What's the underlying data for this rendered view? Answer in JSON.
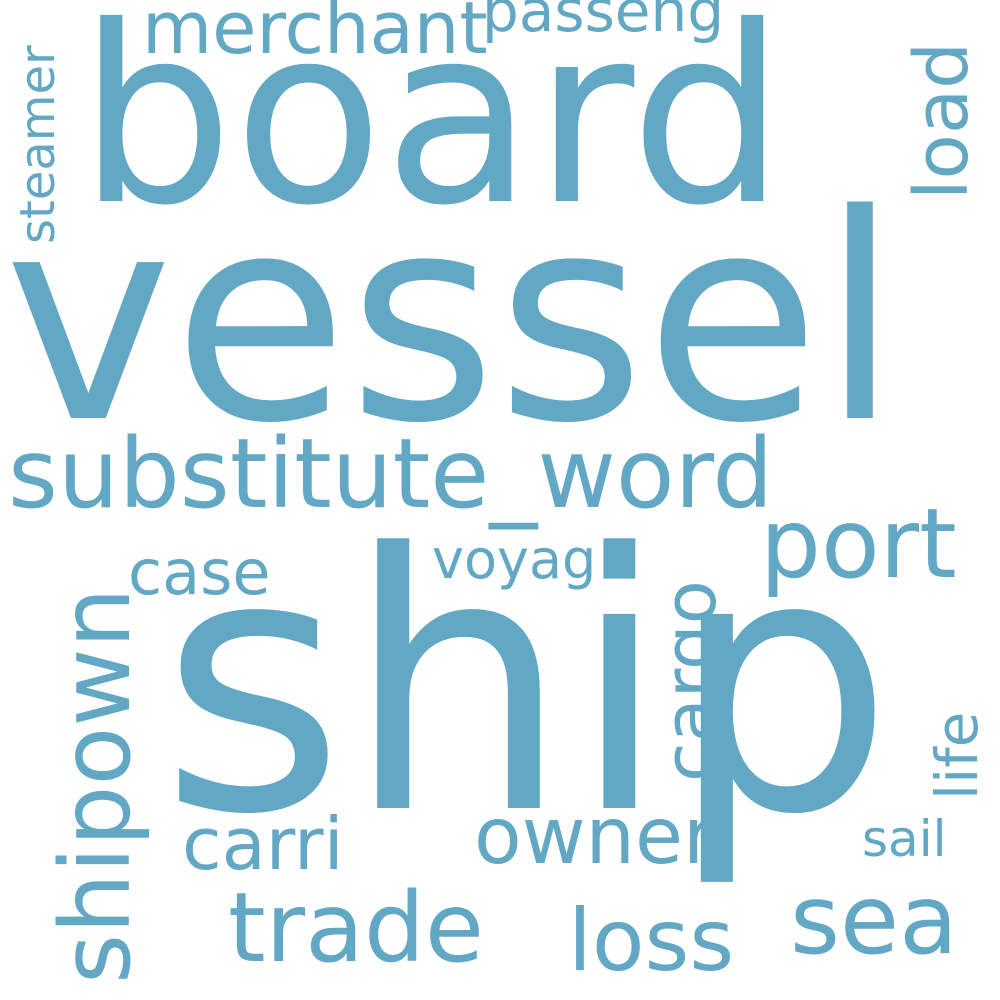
{
  "color": "#62a8c4",
  "background": "#ffffff",
  "words": {
    "ship": "ship",
    "vessel": "vessel",
    "board": "board",
    "substitute_word": "substitute_word",
    "port": "port",
    "merchant": "merchant",
    "passeng": "passeng",
    "load": "load",
    "steamer": "steamer",
    "shipown": "shipown",
    "case": "case",
    "voyag": "voyag",
    "cargo": "cargo",
    "life": "life",
    "owner": "owner",
    "carri": "carri",
    "sail": "sail",
    "trade": "trade",
    "sea": "sea",
    "loss": "loss"
  }
}
